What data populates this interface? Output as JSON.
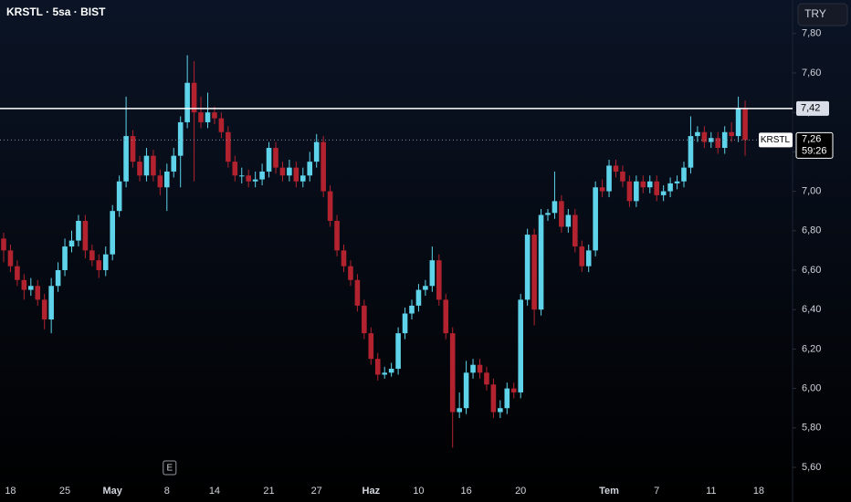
{
  "chart_data": {
    "type": "candlestick",
    "title": "KRSTL · 5sa · BIST",
    "currency": "TRY",
    "event_marker": "E",
    "up_color": "#5ed3ea",
    "down_color": "#b3222f",
    "categories": [
      null,
      "18",
      null,
      null,
      null,
      null,
      null,
      null,
      null,
      "25",
      null,
      null,
      null,
      null,
      null,
      null,
      "May",
      null,
      null,
      null,
      null,
      null,
      null,
      null,
      "8",
      null,
      null,
      null,
      null,
      null,
      null,
      "14",
      null,
      null,
      null,
      null,
      null,
      null,
      null,
      "21",
      null,
      null,
      null,
      null,
      null,
      null,
      "27",
      null,
      null,
      null,
      null,
      null,
      null,
      null,
      "Haz",
      null,
      null,
      null,
      null,
      null,
      null,
      "10",
      null,
      null,
      null,
      null,
      null,
      null,
      "16",
      null,
      null,
      null,
      null,
      null,
      null,
      null,
      "20",
      null,
      null,
      null,
      null,
      null,
      null,
      null,
      null,
      null,
      null,
      null,
      null,
      "Tem",
      null,
      null,
      null,
      null,
      null,
      null,
      "7",
      null,
      null,
      null,
      null,
      null,
      null,
      null,
      "11",
      null,
      null,
      null,
      null,
      null,
      null,
      "18"
    ],
    "candles": [
      [
        6.76,
        6.79,
        6.64,
        6.7
      ],
      [
        6.7,
        6.73,
        6.59,
        6.62
      ],
      [
        6.62,
        6.65,
        6.52,
        6.55
      ],
      [
        6.55,
        6.58,
        6.45,
        6.5
      ],
      [
        6.5,
        6.56,
        6.47,
        6.52
      ],
      [
        6.52,
        6.55,
        6.42,
        6.45
      ],
      [
        6.45,
        6.48,
        6.3,
        6.35
      ],
      [
        6.35,
        6.56,
        6.28,
        6.52
      ],
      [
        6.52,
        6.64,
        6.49,
        6.6
      ],
      [
        6.6,
        6.76,
        6.57,
        6.72
      ],
      [
        6.72,
        6.8,
        6.69,
        6.75
      ],
      [
        6.75,
        6.88,
        6.72,
        6.85
      ],
      [
        6.85,
        6.88,
        6.66,
        6.7
      ],
      [
        6.7,
        6.73,
        6.62,
        6.65
      ],
      [
        6.65,
        6.68,
        6.56,
        6.6
      ],
      [
        6.6,
        6.72,
        6.57,
        6.68
      ],
      [
        6.68,
        6.93,
        6.65,
        6.9
      ],
      [
        6.9,
        7.08,
        6.87,
        7.05
      ],
      [
        7.05,
        7.48,
        7.02,
        7.28
      ],
      [
        7.28,
        7.31,
        7.12,
        7.15
      ],
      [
        7.15,
        7.18,
        7.05,
        7.08
      ],
      [
        7.08,
        7.22,
        7.05,
        7.18
      ],
      [
        7.18,
        7.21,
        7.05,
        7.08
      ],
      [
        7.08,
        7.11,
        6.98,
        7.02
      ],
      [
        7.02,
        7.14,
        6.9,
        7.1
      ],
      [
        7.1,
        7.22,
        7.07,
        7.18
      ],
      [
        7.18,
        7.38,
        7.02,
        7.35
      ],
      [
        7.35,
        7.69,
        7.32,
        7.55
      ],
      [
        7.55,
        7.66,
        7.05,
        7.4
      ],
      [
        7.4,
        7.48,
        7.32,
        7.35
      ],
      [
        7.35,
        7.5,
        7.32,
        7.4
      ],
      [
        7.4,
        7.43,
        7.34,
        7.37
      ],
      [
        7.37,
        7.4,
        7.27,
        7.3
      ],
      [
        7.3,
        7.33,
        7.12,
        7.15
      ],
      [
        7.15,
        7.18,
        7.05,
        7.08
      ],
      [
        7.08,
        7.12,
        7.04,
        7.08
      ],
      [
        7.08,
        7.11,
        7.02,
        7.05
      ],
      [
        7.05,
        7.1,
        7.02,
        7.06
      ],
      [
        7.06,
        7.14,
        7.03,
        7.1
      ],
      [
        7.1,
        7.25,
        7.07,
        7.22
      ],
      [
        7.22,
        7.25,
        7.09,
        7.12
      ],
      [
        7.12,
        7.15,
        7.05,
        7.08
      ],
      [
        7.08,
        7.16,
        7.05,
        7.12
      ],
      [
        7.12,
        7.15,
        7.02,
        7.05
      ],
      [
        7.05,
        7.12,
        7.02,
        7.08
      ],
      [
        7.08,
        7.2,
        7.05,
        7.15
      ],
      [
        7.15,
        7.29,
        7.12,
        7.25
      ],
      [
        7.25,
        7.28,
        6.97,
        7.0
      ],
      [
        7.0,
        7.03,
        6.82,
        6.85
      ],
      [
        6.85,
        6.88,
        6.67,
        6.7
      ],
      [
        6.7,
        6.73,
        6.59,
        6.62
      ],
      [
        6.62,
        6.65,
        6.52,
        6.55
      ],
      [
        6.55,
        6.58,
        6.39,
        6.42
      ],
      [
        6.42,
        6.45,
        6.25,
        6.28
      ],
      [
        6.28,
        6.31,
        6.12,
        6.15
      ],
      [
        6.15,
        6.18,
        6.04,
        6.07
      ],
      [
        6.07,
        6.11,
        6.05,
        6.08
      ],
      [
        6.08,
        6.13,
        6.06,
        6.1
      ],
      [
        6.1,
        6.31,
        6.07,
        6.28
      ],
      [
        6.28,
        6.41,
        6.25,
        6.38
      ],
      [
        6.38,
        6.45,
        6.35,
        6.42
      ],
      [
        6.42,
        6.53,
        6.39,
        6.5
      ],
      [
        6.5,
        6.55,
        6.47,
        6.52
      ],
      [
        6.52,
        6.72,
        6.49,
        6.65
      ],
      [
        6.65,
        6.68,
        6.42,
        6.45
      ],
      [
        6.45,
        6.48,
        6.25,
        6.28
      ],
      [
        6.28,
        6.31,
        5.7,
        5.88
      ],
      [
        5.88,
        5.98,
        5.85,
        5.9
      ],
      [
        5.9,
        6.14,
        5.87,
        6.08
      ],
      [
        6.08,
        6.15,
        6.05,
        6.12
      ],
      [
        6.12,
        6.15,
        6.05,
        6.08
      ],
      [
        6.08,
        6.11,
        5.99,
        6.02
      ],
      [
        6.02,
        6.05,
        5.85,
        5.88
      ],
      [
        5.88,
        5.94,
        5.85,
        5.9
      ],
      [
        5.9,
        6.03,
        5.87,
        6.0
      ],
      [
        6.0,
        6.03,
        5.95,
        5.98
      ],
      [
        5.98,
        6.48,
        5.95,
        6.45
      ],
      [
        6.45,
        6.81,
        6.42,
        6.78
      ],
      [
        6.78,
        6.81,
        6.32,
        6.4
      ],
      [
        6.4,
        6.91,
        6.37,
        6.88
      ],
      [
        6.88,
        6.91,
        6.85,
        6.89
      ],
      [
        6.89,
        7.1,
        6.86,
        6.95
      ],
      [
        6.95,
        6.98,
        6.79,
        6.82
      ],
      [
        6.82,
        6.91,
        6.79,
        6.88
      ],
      [
        6.88,
        6.91,
        6.69,
        6.72
      ],
      [
        6.72,
        6.75,
        6.59,
        6.62
      ],
      [
        6.62,
        6.73,
        6.59,
        6.7
      ],
      [
        6.7,
        7.05,
        6.67,
        7.02
      ],
      [
        7.02,
        7.06,
        6.97,
        7.0
      ],
      [
        7.0,
        7.16,
        6.97,
        7.13
      ],
      [
        7.13,
        7.16,
        7.07,
        7.1
      ],
      [
        7.1,
        7.13,
        7.02,
        7.05
      ],
      [
        7.05,
        7.08,
        6.92,
        6.95
      ],
      [
        6.95,
        7.08,
        6.92,
        7.05
      ],
      [
        7.05,
        7.08,
        6.99,
        7.02
      ],
      [
        7.02,
        7.08,
        6.99,
        7.05
      ],
      [
        7.05,
        7.08,
        6.95,
        6.98
      ],
      [
        6.98,
        7.03,
        6.95,
        7.0
      ],
      [
        7.0,
        7.07,
        6.97,
        7.04
      ],
      [
        7.04,
        7.08,
        7.01,
        7.05
      ],
      [
        7.05,
        7.15,
        7.02,
        7.12
      ],
      [
        7.12,
        7.38,
        7.09,
        7.28
      ],
      [
        7.28,
        7.33,
        7.25,
        7.3
      ],
      [
        7.3,
        7.33,
        7.22,
        7.25
      ],
      [
        7.25,
        7.3,
        7.22,
        7.27
      ],
      [
        7.27,
        7.3,
        7.19,
        7.22
      ],
      [
        7.22,
        7.33,
        7.19,
        7.3
      ],
      [
        7.3,
        7.35,
        7.25,
        7.28
      ],
      [
        7.28,
        7.48,
        7.25,
        7.42
      ],
      [
        7.42,
        7.46,
        7.18,
        7.26
      ],
      null,
      null
    ],
    "ylim": [
      5.52,
      7.97
    ],
    "yticks": [
      {
        "value": 5.6,
        "label": "5,60"
      },
      {
        "value": 5.8,
        "label": "5,80"
      },
      {
        "value": 6.0,
        "label": "6,00"
      },
      {
        "value": 6.2,
        "label": "6,20"
      },
      {
        "value": 6.4,
        "label": "6,40"
      },
      {
        "value": 6.6,
        "label": "6,60"
      },
      {
        "value": 6.8,
        "label": "6,80"
      },
      {
        "value": 7.0,
        "label": "7,00"
      },
      {
        "value": 7.2,
        "label": "7,20"
      },
      {
        "value": 7.4,
        "label": "7,40"
      },
      {
        "value": 7.6,
        "label": "7,60"
      },
      {
        "value": 7.8,
        "label": "7,80"
      }
    ],
    "price_lines": [
      {
        "value": 7.42,
        "label": "7,42"
      },
      {
        "name": "KRSTL",
        "value": 7.26,
        "label": "7,26",
        "countdown": "59:26"
      }
    ]
  }
}
